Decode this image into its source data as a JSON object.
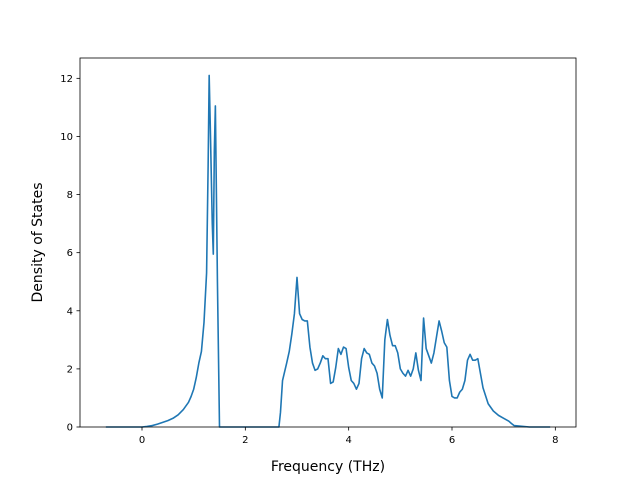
{
  "chart_data": {
    "type": "line",
    "title": "",
    "xlabel": "Frequency (THz)",
    "ylabel": "Density of States",
    "xlim": [
      -1.2,
      8.4
    ],
    "ylim": [
      0,
      12.7
    ],
    "xticks": [
      0,
      2,
      4,
      6,
      8
    ],
    "yticks": [
      0,
      2,
      4,
      6,
      8,
      10,
      12
    ],
    "xtick_labels": [
      "0",
      "2",
      "4",
      "6",
      "8"
    ],
    "ytick_labels": [
      "0",
      "2",
      "4",
      "6",
      "8",
      "10",
      "12"
    ],
    "grid": false,
    "legend": "none",
    "line_color": "#1f77b4",
    "series": [
      {
        "x": [
          -0.7,
          -0.4,
          -0.1,
          0.0,
          0.1,
          0.2,
          0.3,
          0.4,
          0.5,
          0.6,
          0.7,
          0.8,
          0.9,
          0.95,
          1.0,
          1.05,
          1.1,
          1.15,
          1.2,
          1.25,
          1.28,
          1.3,
          1.32,
          1.36,
          1.38,
          1.4,
          1.42,
          1.46,
          1.5,
          1.8,
          2.1,
          2.4,
          2.65,
          2.68,
          2.72,
          2.8,
          2.85,
          2.9,
          2.95,
          3.0,
          3.05,
          3.1,
          3.15,
          3.2,
          3.25,
          3.3,
          3.35,
          3.4,
          3.45,
          3.5,
          3.55,
          3.6,
          3.65,
          3.7,
          3.75,
          3.8,
          3.85,
          3.9,
          3.95,
          4.0,
          4.05,
          4.1,
          4.15,
          4.2,
          4.25,
          4.3,
          4.35,
          4.4,
          4.45,
          4.5,
          4.55,
          4.6,
          4.65,
          4.7,
          4.75,
          4.8,
          4.85,
          4.9,
          4.95,
          5.0,
          5.05,
          5.1,
          5.15,
          5.2,
          5.25,
          5.3,
          5.35,
          5.4,
          5.45,
          5.5,
          5.55,
          5.6,
          5.65,
          5.7,
          5.75,
          5.8,
          5.85,
          5.9,
          5.95,
          6.0,
          6.05,
          6.1,
          6.15,
          6.2,
          6.25,
          6.3,
          6.35,
          6.4,
          6.45,
          6.5,
          6.6,
          6.7,
          6.8,
          6.9,
          7.0,
          7.1,
          7.15,
          7.2,
          7.5,
          7.9
        ],
        "y": [
          0.0,
          0.0,
          0.0,
          0.0,
          0.02,
          0.05,
          0.1,
          0.16,
          0.22,
          0.3,
          0.42,
          0.6,
          0.85,
          1.05,
          1.3,
          1.7,
          2.2,
          2.6,
          3.6,
          5.3,
          9.0,
          12.1,
          10.5,
          7.0,
          5.95,
          9.5,
          11.05,
          5.0,
          0.0,
          0.0,
          0.0,
          0.0,
          0.0,
          0.5,
          1.6,
          2.2,
          2.6,
          3.2,
          3.9,
          5.15,
          3.9,
          3.7,
          3.65,
          3.65,
          2.75,
          2.2,
          1.95,
          2.0,
          2.2,
          2.45,
          2.35,
          2.35,
          1.5,
          1.55,
          2.05,
          2.7,
          2.5,
          2.75,
          2.7,
          2.05,
          1.6,
          1.5,
          1.3,
          1.5,
          2.35,
          2.7,
          2.55,
          2.5,
          2.2,
          2.1,
          1.85,
          1.3,
          1.0,
          3.0,
          3.7,
          3.15,
          2.8,
          2.8,
          2.55,
          2.0,
          1.85,
          1.75,
          1.95,
          1.75,
          2.0,
          2.55,
          1.95,
          1.6,
          3.75,
          2.7,
          2.45,
          2.2,
          2.55,
          3.1,
          3.65,
          3.3,
          2.9,
          2.75,
          1.6,
          1.05,
          1.0,
          1.0,
          1.2,
          1.3,
          1.6,
          2.3,
          2.5,
          2.3,
          2.3,
          2.35,
          1.35,
          0.8,
          0.55,
          0.4,
          0.3,
          0.2,
          0.12,
          0.05,
          0.0,
          0.0
        ]
      }
    ]
  }
}
